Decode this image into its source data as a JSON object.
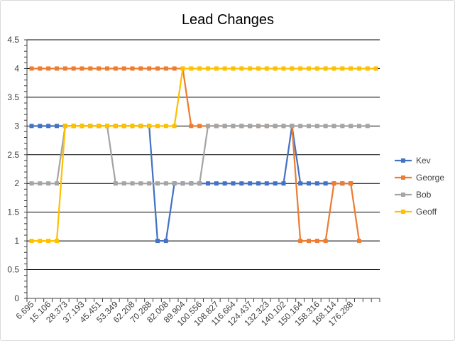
{
  "chart_data": {
    "type": "line",
    "title": "Lead Changes",
    "xlabel": "",
    "ylabel": "",
    "ylim": [
      0,
      4.5
    ],
    "y_ticks": [
      "0",
      "0.5",
      "1",
      "1.5",
      "2",
      "2.5",
      "3",
      "3.5",
      "4",
      "4.5"
    ],
    "grid": true,
    "legend_position": "right",
    "x_tick_labels": [
      "6.695",
      "15.106",
      "28.373",
      "37.193",
      "45.451",
      "53.349",
      "62.208",
      "70.288",
      "82.008",
      "89.904",
      "100.556",
      "108.827",
      "116.664",
      "124.437",
      "132.323",
      "140.102",
      "150.164",
      "158.316",
      "168.114",
      "176.288"
    ],
    "x_tick_label_every": 2,
    "category_count": 42,
    "series": [
      {
        "name": "Kev",
        "color": "#4472C4",
        "values": [
          3,
          3,
          3,
          3,
          3,
          3,
          3,
          3,
          3,
          3,
          3,
          3,
          3,
          3,
          3,
          1,
          1,
          2,
          2,
          2,
          2,
          2,
          2,
          2,
          2,
          2,
          2,
          2,
          2,
          2,
          2,
          3,
          2,
          2,
          2,
          2,
          2,
          2,
          2,
          null,
          null,
          null
        ]
      },
      {
        "name": "George",
        "color": "#ED7D31",
        "values": [
          4,
          4,
          4,
          4,
          4,
          4,
          4,
          4,
          4,
          4,
          4,
          4,
          4,
          4,
          4,
          4,
          4,
          4,
          4,
          3,
          3,
          3,
          3,
          3,
          3,
          3,
          3,
          3,
          3,
          3,
          3,
          3,
          1,
          1,
          1,
          1,
          2,
          2,
          2,
          1,
          null,
          null
        ]
      },
      {
        "name": "Bob",
        "color": "#A5A5A5",
        "values": [
          2,
          2,
          2,
          2,
          3,
          3,
          3,
          3,
          3,
          3,
          2,
          2,
          2,
          2,
          2,
          2,
          2,
          2,
          2,
          2,
          2,
          3,
          3,
          3,
          3,
          3,
          3,
          3,
          3,
          3,
          3,
          3,
          3,
          3,
          3,
          3,
          3,
          3,
          3,
          3,
          3,
          null
        ]
      },
      {
        "name": "Geoff",
        "color": "#FFC000",
        "values": [
          1,
          1,
          1,
          1,
          3,
          3,
          3,
          3,
          3,
          3,
          3,
          3,
          3,
          3,
          3,
          3,
          3,
          3,
          4,
          4,
          4,
          4,
          4,
          4,
          4,
          4,
          4,
          4,
          4,
          4,
          4,
          4,
          4,
          4,
          4,
          4,
          4,
          4,
          4,
          4,
          4,
          4
        ]
      }
    ]
  }
}
